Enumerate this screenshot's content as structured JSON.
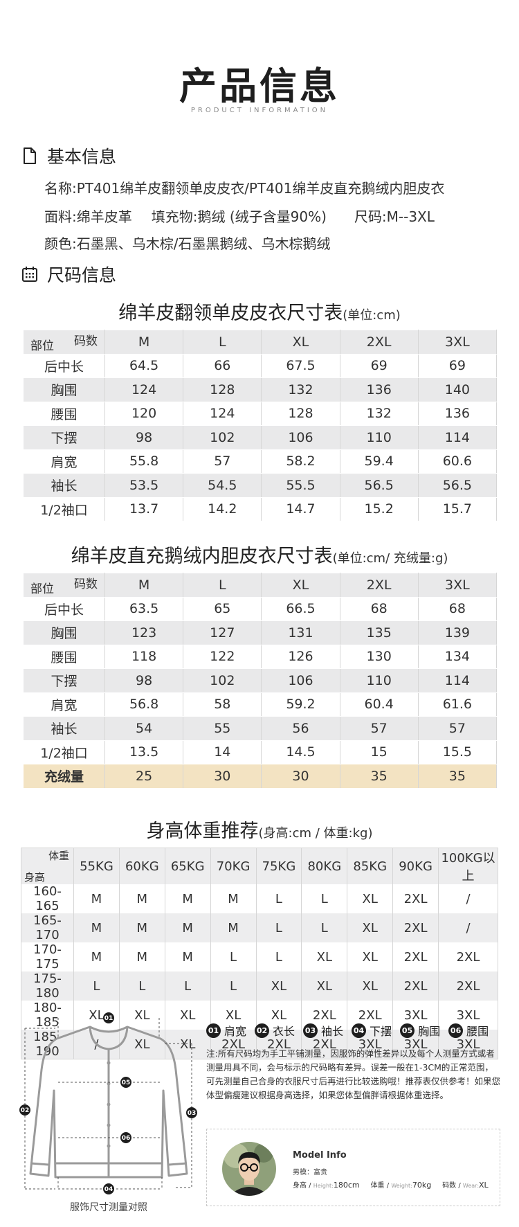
{
  "header": {
    "title": "产品信息",
    "subtitle": "PRODUCT INFORMATION"
  },
  "basic": {
    "heading": "基本信息",
    "icon": "document-icon",
    "name": "名称:PT401绵羊皮翻领单皮皮衣/PT401绵羊皮直充鹅绒内胆皮衣",
    "fabric": "面料:绵羊皮革",
    "filling": "填充物:鹅绒 (绒子含量90%)",
    "size_range": "尺码:M--3XL",
    "colors": "颜色:石墨黑、乌木棕/石墨黑鹅绒、乌木棕鹅绒"
  },
  "size_info": {
    "heading": "尺码信息",
    "icon": "calendar-icon"
  },
  "table1": {
    "title": "绵羊皮翻领单皮皮衣尺寸表",
    "unit": "(单位:cm)",
    "corner_top": "码数",
    "corner_bottom": "部位",
    "sizes": [
      "M",
      "L",
      "XL",
      "2XL",
      "3XL"
    ],
    "rows": [
      [
        "后中长",
        "64.5",
        "66",
        "67.5",
        "69",
        "69"
      ],
      [
        "胸围",
        "124",
        "128",
        "132",
        "136",
        "140"
      ],
      [
        "腰围",
        "120",
        "124",
        "128",
        "132",
        "136"
      ],
      [
        "下摆",
        "98",
        "102",
        "106",
        "110",
        "114"
      ],
      [
        "肩宽",
        "55.8",
        "57",
        "58.2",
        "59.4",
        "60.6"
      ],
      [
        "袖长",
        "53.5",
        "54.5",
        "55.5",
        "56.5",
        "56.5"
      ],
      [
        "1/2袖口",
        "13.7",
        "14.2",
        "14.7",
        "15.2",
        "15.7"
      ]
    ]
  },
  "table2": {
    "title": "绵羊皮直充鹅绒内胆皮衣尺寸表",
    "unit": "(单位:cm/ 充绒量:g)",
    "corner_top": "码数",
    "corner_bottom": "部位",
    "sizes": [
      "M",
      "L",
      "XL",
      "2XL",
      "3XL"
    ],
    "rows": [
      [
        "后中长",
        "63.5",
        "65",
        "66.5",
        "68",
        "68"
      ],
      [
        "胸围",
        "123",
        "127",
        "131",
        "135",
        "139"
      ],
      [
        "腰围",
        "118",
        "122",
        "126",
        "130",
        "134"
      ],
      [
        "下摆",
        "98",
        "102",
        "106",
        "110",
        "114"
      ],
      [
        "肩宽",
        "56.8",
        "58",
        "59.2",
        "60.4",
        "61.6"
      ],
      [
        "袖长",
        "54",
        "55",
        "56",
        "57",
        "57"
      ],
      [
        "1/2袖口",
        "13.5",
        "14",
        "14.5",
        "15",
        "15.5"
      ]
    ],
    "down_row": [
      "充绒量",
      "25",
      "30",
      "30",
      "35",
      "35"
    ],
    "down_row_color": "#f3e3c2"
  },
  "recommend": {
    "title": "身高体重推荐",
    "unit": "(身高:cm / 体重:kg)",
    "corner_top": "体重",
    "corner_bottom": "身高",
    "weights": [
      "55KG",
      "60KG",
      "65KG",
      "70KG",
      "75KG",
      "80KG",
      "85KG",
      "90KG",
      "100KG以上"
    ],
    "rows": [
      [
        "160-165",
        "M",
        "M",
        "M",
        "M",
        "L",
        "L",
        "XL",
        "2XL",
        "/"
      ],
      [
        "165-170",
        "M",
        "M",
        "M",
        "M",
        "L",
        "L",
        "XL",
        "2XL",
        "/"
      ],
      [
        "170-175",
        "M",
        "M",
        "M",
        "L",
        "L",
        "XL",
        "XL",
        "2XL",
        "2XL"
      ],
      [
        "175-180",
        "L",
        "L",
        "L",
        "L",
        "XL",
        "XL",
        "XL",
        "2XL",
        "2XL"
      ],
      [
        "180-185",
        "XL",
        "XL",
        "XL",
        "XL",
        "XL",
        "2XL",
        "2XL",
        "3XL",
        "3XL"
      ],
      [
        "185-190",
        "/",
        "XL",
        "XL",
        "2XL",
        "2XL",
        "2XL",
        "3XL",
        "3XL",
        "3XL"
      ]
    ]
  },
  "measure": {
    "caption": "服饰尺寸测量对照",
    "legend": [
      {
        "num": "01",
        "label": "肩宽"
      },
      {
        "num": "02",
        "label": "衣长"
      },
      {
        "num": "03",
        "label": "袖长"
      },
      {
        "num": "04",
        "label": "下摆"
      },
      {
        "num": "05",
        "label": "胸围"
      },
      {
        "num": "06",
        "label": "腰围"
      }
    ],
    "note": "注:所有尺码均为手工平铺测量，因服饰的弹性差异以及每个人测量方式或者测量用具不同，会与标示的尺码略有差异。误差一般在1-3CM的正常范围，可先测量自己合身的衣服尺寸后再进行比较选购哦！推荐表仅供参考！如果您体型偏瘦建议根据身高选择，如果您体型偏胖请根据体重选择。"
  },
  "model": {
    "title": "Model Info",
    "line1": "男模：富贵",
    "height_label": "身高 /",
    "height_en": "Height:",
    "height_value": "180cm",
    "weight_label": "体重 /",
    "weight_en": "Weight:",
    "weight_value": "70kg",
    "size_label": "码数 /",
    "size_en": "Wear:",
    "size_value": "XL"
  }
}
